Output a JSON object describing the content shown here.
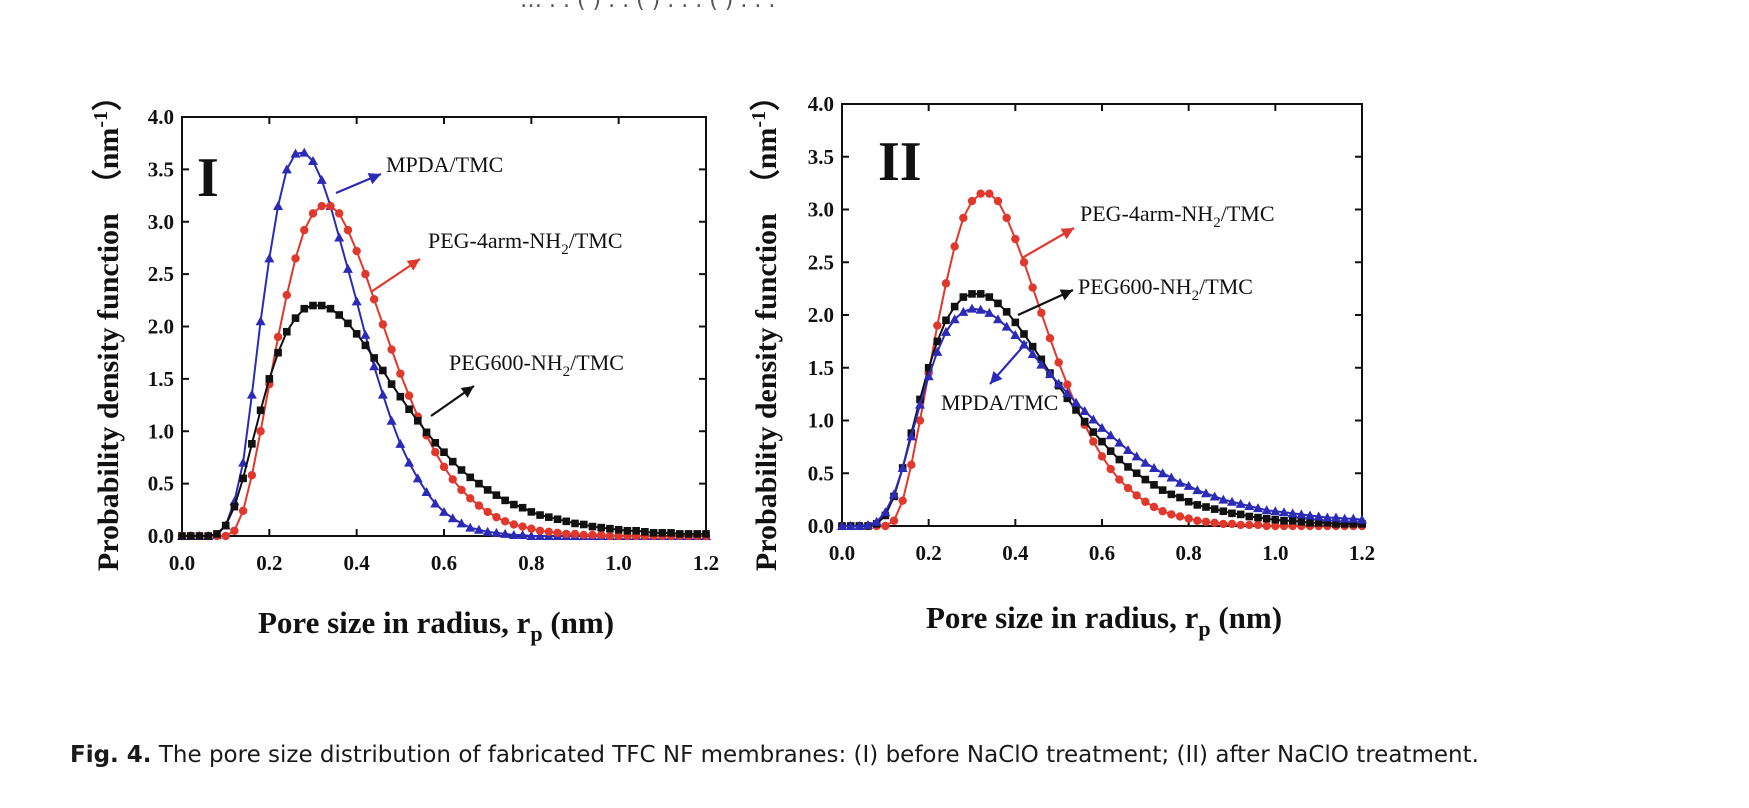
{
  "header_fragment": "… . . ( ) . . ( ) . . . ( ) . . .",
  "caption": {
    "label": "Fig. 4.",
    "text": " The pore size distribution of fabricated TFC NF membranes: (I) before NaClO treatment; (II) after NaClO treatment."
  },
  "colors": {
    "MPDA/TMC": "#2b2bb8",
    "PEG-4arm-NH2/TMC": "#e0382c",
    "PEG600-NH2/TMC": "#111111"
  },
  "chart_data": [
    {
      "type": "line",
      "panel_label": "I",
      "xlabel": "Pore size in radius, r",
      "xlabel_sub": "p",
      "xlabel_unit": " (nm)",
      "ylabel": "Probability density function",
      "ylabel_unit": "nm",
      "ylabel_unit_sup": "-1",
      "xlim": [
        0,
        1.2
      ],
      "ylim": [
        0,
        4
      ],
      "xticks": [
        "0.0",
        "0.2",
        "0.4",
        "0.6",
        "0.8",
        "1.0",
        "1.2"
      ],
      "yticks": [
        "0.0",
        "0.5",
        "1.0",
        "1.5",
        "2.0",
        "2.5",
        "3.0",
        "3.5",
        "4.0"
      ],
      "grid": false,
      "x_step": 0.02,
      "series": [
        {
          "name": "MPDA/TMC",
          "marker": "triangle",
          "annotation": "MPDA/TMC",
          "x": [
            0.0,
            0.02,
            0.04,
            0.06,
            0.08,
            0.1,
            0.12,
            0.14,
            0.16,
            0.18,
            0.2,
            0.22,
            0.24,
            0.26,
            0.28,
            0.3,
            0.32,
            0.34,
            0.36,
            0.38,
            0.4,
            0.42,
            0.44,
            0.46,
            0.48,
            0.5,
            0.52,
            0.54,
            0.56,
            0.58,
            0.6,
            0.62,
            0.64,
            0.66,
            0.68,
            0.7,
            0.72,
            0.74,
            0.76,
            0.78,
            0.8,
            0.82,
            0.84,
            0.86,
            0.88,
            0.9,
            0.92,
            0.94,
            0.96,
            0.98,
            1.0,
            1.02,
            1.04,
            1.06,
            1.08,
            1.1,
            1.12,
            1.14,
            1.16,
            1.18,
            1.2
          ],
          "y": [
            0.0,
            0.0,
            0.0,
            0.0,
            0.01,
            0.1,
            0.33,
            0.7,
            1.35,
            2.05,
            2.65,
            3.15,
            3.5,
            3.65,
            3.66,
            3.58,
            3.4,
            3.15,
            2.85,
            2.55,
            2.24,
            1.92,
            1.62,
            1.35,
            1.1,
            0.88,
            0.7,
            0.55,
            0.42,
            0.31,
            0.23,
            0.17,
            0.12,
            0.08,
            0.06,
            0.04,
            0.03,
            0.02,
            0.01,
            0.01,
            0.0,
            0.0,
            0.0,
            0.0,
            0.0,
            0.0,
            0.0,
            0.0,
            0.0,
            0.0,
            0.0,
            0.0,
            0.0,
            0.0,
            0.0,
            0.0,
            0.0,
            0.0,
            0.0,
            0.0,
            0.0
          ]
        },
        {
          "name": "PEG-4arm-NH2/TMC",
          "marker": "circle",
          "annotation": "PEG-4arm-NH",
          "annotation_sub": "2",
          "annotation_tail": "/TMC",
          "x": [
            0.0,
            0.02,
            0.04,
            0.06,
            0.08,
            0.1,
            0.12,
            0.14,
            0.16,
            0.18,
            0.2,
            0.22,
            0.24,
            0.26,
            0.28,
            0.3,
            0.32,
            0.34,
            0.36,
            0.38,
            0.4,
            0.42,
            0.44,
            0.46,
            0.48,
            0.5,
            0.52,
            0.54,
            0.56,
            0.58,
            0.6,
            0.62,
            0.64,
            0.66,
            0.68,
            0.7,
            0.72,
            0.74,
            0.76,
            0.78,
            0.8,
            0.82,
            0.84,
            0.86,
            0.88,
            0.9,
            0.92,
            0.94,
            0.96,
            0.98,
            1.0,
            1.02,
            1.04,
            1.06,
            1.08,
            1.1,
            1.12,
            1.14,
            1.16,
            1.18,
            1.2
          ],
          "y": [
            0.0,
            0.0,
            0.0,
            0.0,
            0.0,
            0.0,
            0.05,
            0.24,
            0.58,
            1.0,
            1.45,
            1.9,
            2.3,
            2.65,
            2.92,
            3.08,
            3.15,
            3.15,
            3.08,
            2.92,
            2.72,
            2.5,
            2.26,
            2.02,
            1.78,
            1.55,
            1.34,
            1.14,
            0.96,
            0.8,
            0.66,
            0.54,
            0.44,
            0.36,
            0.29,
            0.23,
            0.18,
            0.14,
            0.11,
            0.09,
            0.07,
            0.05,
            0.04,
            0.03,
            0.02,
            0.02,
            0.01,
            0.01,
            0.01,
            0.0,
            0.0,
            0.0,
            0.0,
            0.0,
            0.0,
            0.0,
            0.0,
            0.0,
            0.0,
            0.0,
            0.0
          ]
        },
        {
          "name": "PEG600-NH2/TMC",
          "marker": "square",
          "annotation": "PEG600-NH",
          "annotation_sub": "2",
          "annotation_tail": "/TMC",
          "x": [
            0.0,
            0.02,
            0.04,
            0.06,
            0.08,
            0.1,
            0.12,
            0.14,
            0.16,
            0.18,
            0.2,
            0.22,
            0.24,
            0.26,
            0.28,
            0.3,
            0.32,
            0.34,
            0.36,
            0.38,
            0.4,
            0.42,
            0.44,
            0.46,
            0.48,
            0.5,
            0.52,
            0.54,
            0.56,
            0.58,
            0.6,
            0.62,
            0.64,
            0.66,
            0.68,
            0.7,
            0.72,
            0.74,
            0.76,
            0.78,
            0.8,
            0.82,
            0.84,
            0.86,
            0.88,
            0.9,
            0.92,
            0.94,
            0.96,
            0.98,
            1.0,
            1.02,
            1.04,
            1.06,
            1.08,
            1.1,
            1.12,
            1.14,
            1.16,
            1.18,
            1.2
          ],
          "y": [
            0.0,
            0.0,
            0.0,
            0.0,
            0.02,
            0.1,
            0.28,
            0.55,
            0.88,
            1.2,
            1.5,
            1.75,
            1.95,
            2.08,
            2.17,
            2.2,
            2.2,
            2.17,
            2.11,
            2.03,
            1.93,
            1.82,
            1.7,
            1.58,
            1.45,
            1.33,
            1.21,
            1.1,
            0.99,
            0.89,
            0.8,
            0.71,
            0.63,
            0.56,
            0.5,
            0.44,
            0.39,
            0.34,
            0.3,
            0.27,
            0.23,
            0.2,
            0.18,
            0.16,
            0.14,
            0.12,
            0.11,
            0.09,
            0.08,
            0.07,
            0.06,
            0.05,
            0.05,
            0.04,
            0.03,
            0.03,
            0.03,
            0.02,
            0.02,
            0.02,
            0.02
          ]
        }
      ]
    },
    {
      "type": "line",
      "panel_label": "II",
      "xlabel": "Pore size in radius, r",
      "xlabel_sub": "p",
      "xlabel_unit": " (nm)",
      "ylabel": "Probability density function",
      "ylabel_unit": "nm",
      "ylabel_unit_sup": "-1",
      "xlim": [
        0,
        1.2
      ],
      "ylim": [
        0,
        4
      ],
      "xticks": [
        "0.0",
        "0.2",
        "0.4",
        "0.6",
        "0.8",
        "1.0",
        "1.2"
      ],
      "yticks": [
        "0.0",
        "0.5",
        "1.0",
        "1.5",
        "2.0",
        "2.5",
        "3.0",
        "3.5",
        "4.0"
      ],
      "grid": false,
      "series": [
        {
          "name": "PEG-4arm-NH2/TMC",
          "marker": "circle",
          "annotation": "PEG-4arm-NH",
          "annotation_sub": "2",
          "annotation_tail": "/TMC",
          "x": [
            0.0,
            0.02,
            0.04,
            0.06,
            0.08,
            0.1,
            0.12,
            0.14,
            0.16,
            0.18,
            0.2,
            0.22,
            0.24,
            0.26,
            0.28,
            0.3,
            0.32,
            0.34,
            0.36,
            0.38,
            0.4,
            0.42,
            0.44,
            0.46,
            0.48,
            0.5,
            0.52,
            0.54,
            0.56,
            0.58,
            0.6,
            0.62,
            0.64,
            0.66,
            0.68,
            0.7,
            0.72,
            0.74,
            0.76,
            0.78,
            0.8,
            0.82,
            0.84,
            0.86,
            0.88,
            0.9,
            0.92,
            0.94,
            0.96,
            0.98,
            1.0,
            1.02,
            1.04,
            1.06,
            1.08,
            1.1,
            1.12,
            1.14,
            1.16,
            1.18,
            1.2
          ],
          "y": [
            0.0,
            0.0,
            0.0,
            0.0,
            0.0,
            0.0,
            0.05,
            0.24,
            0.58,
            1.0,
            1.45,
            1.9,
            2.3,
            2.65,
            2.92,
            3.08,
            3.15,
            3.15,
            3.08,
            2.92,
            2.72,
            2.5,
            2.26,
            2.02,
            1.78,
            1.55,
            1.34,
            1.14,
            0.96,
            0.8,
            0.66,
            0.54,
            0.44,
            0.36,
            0.29,
            0.23,
            0.18,
            0.14,
            0.11,
            0.09,
            0.07,
            0.05,
            0.04,
            0.03,
            0.02,
            0.02,
            0.01,
            0.01,
            0.01,
            0.0,
            0.0,
            0.0,
            0.0,
            0.0,
            0.0,
            0.0,
            0.0,
            0.0,
            0.0,
            0.0,
            0.0
          ]
        },
        {
          "name": "PEG600-NH2/TMC",
          "marker": "square",
          "annotation": "PEG600-NH",
          "annotation_sub": "2",
          "annotation_tail": "/TMC",
          "x": [
            0.0,
            0.02,
            0.04,
            0.06,
            0.08,
            0.1,
            0.12,
            0.14,
            0.16,
            0.18,
            0.2,
            0.22,
            0.24,
            0.26,
            0.28,
            0.3,
            0.32,
            0.34,
            0.36,
            0.38,
            0.4,
            0.42,
            0.44,
            0.46,
            0.48,
            0.5,
            0.52,
            0.54,
            0.56,
            0.58,
            0.6,
            0.62,
            0.64,
            0.66,
            0.68,
            0.7,
            0.72,
            0.74,
            0.76,
            0.78,
            0.8,
            0.82,
            0.84,
            0.86,
            0.88,
            0.9,
            0.92,
            0.94,
            0.96,
            0.98,
            1.0,
            1.02,
            1.04,
            1.06,
            1.08,
            1.1,
            1.12,
            1.14,
            1.16,
            1.18,
            1.2
          ],
          "y": [
            0.0,
            0.0,
            0.0,
            0.0,
            0.02,
            0.1,
            0.28,
            0.55,
            0.88,
            1.2,
            1.5,
            1.75,
            1.95,
            2.08,
            2.17,
            2.2,
            2.2,
            2.17,
            2.11,
            2.03,
            1.93,
            1.82,
            1.7,
            1.58,
            1.45,
            1.33,
            1.21,
            1.1,
            0.99,
            0.89,
            0.8,
            0.71,
            0.63,
            0.56,
            0.5,
            0.44,
            0.39,
            0.34,
            0.3,
            0.27,
            0.23,
            0.2,
            0.18,
            0.16,
            0.14,
            0.12,
            0.11,
            0.09,
            0.08,
            0.07,
            0.06,
            0.05,
            0.05,
            0.04,
            0.03,
            0.03,
            0.03,
            0.02,
            0.02,
            0.02,
            0.02
          ]
        },
        {
          "name": "MPDA/TMC",
          "marker": "triangle",
          "annotation": "MPDA/TMC",
          "x": [
            0.0,
            0.02,
            0.04,
            0.06,
            0.08,
            0.1,
            0.12,
            0.14,
            0.16,
            0.18,
            0.2,
            0.22,
            0.24,
            0.26,
            0.28,
            0.3,
            0.32,
            0.34,
            0.36,
            0.38,
            0.4,
            0.42,
            0.44,
            0.46,
            0.48,
            0.5,
            0.52,
            0.54,
            0.56,
            0.58,
            0.6,
            0.62,
            0.64,
            0.66,
            0.68,
            0.7,
            0.72,
            0.74,
            0.76,
            0.78,
            0.8,
            0.82,
            0.84,
            0.86,
            0.88,
            0.9,
            0.92,
            0.94,
            0.96,
            0.98,
            1.0,
            1.02,
            1.04,
            1.06,
            1.08,
            1.1,
            1.12,
            1.14,
            1.16,
            1.18,
            1.2
          ],
          "y": [
            0.0,
            0.0,
            0.0,
            0.01,
            0.04,
            0.13,
            0.3,
            0.55,
            0.85,
            1.15,
            1.42,
            1.65,
            1.84,
            1.96,
            2.03,
            2.06,
            2.05,
            2.02,
            1.96,
            1.89,
            1.81,
            1.72,
            1.63,
            1.53,
            1.44,
            1.35,
            1.26,
            1.17,
            1.09,
            1.01,
            0.93,
            0.86,
            0.79,
            0.72,
            0.66,
            0.6,
            0.55,
            0.5,
            0.46,
            0.41,
            0.38,
            0.34,
            0.31,
            0.28,
            0.25,
            0.23,
            0.21,
            0.19,
            0.17,
            0.15,
            0.14,
            0.13,
            0.12,
            0.11,
            0.1,
            0.09,
            0.08,
            0.08,
            0.07,
            0.07,
            0.06
          ]
        }
      ]
    }
  ]
}
